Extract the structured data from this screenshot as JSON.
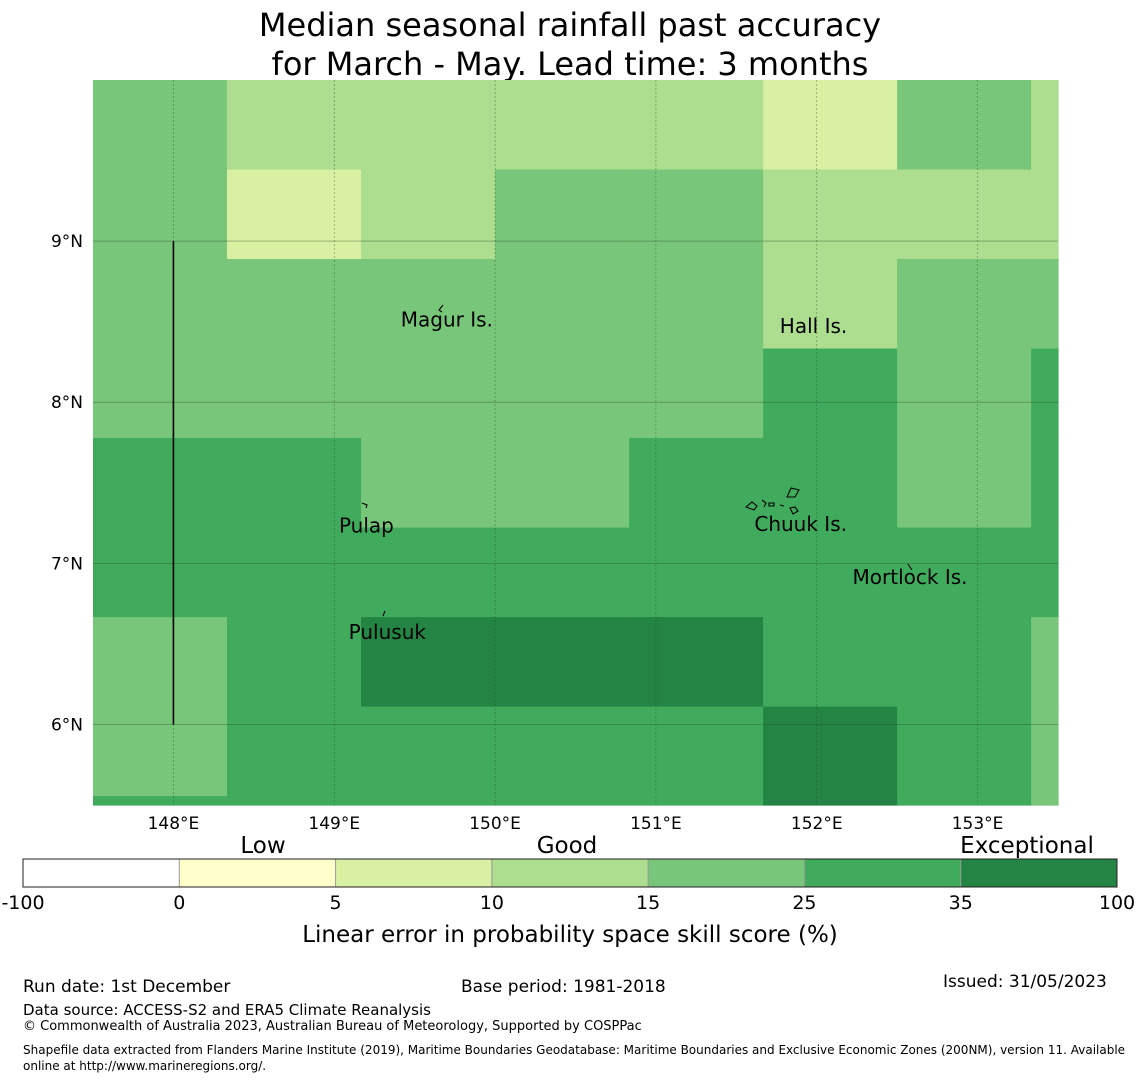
{
  "title_line1": "Median seasonal rainfall past accuracy",
  "title_line2": "for March - May. Lead time: 3 months",
  "map": {
    "lon_range": [
      147.5,
      153.5
    ],
    "lat_range": [
      5.5,
      10.0
    ],
    "cell_lon_start": 147.5,
    "cell_lon_size": 0.8333,
    "cell_lat_top": 10.0,
    "cell_lat_size": 0.5556,
    "grid_colors": [
      [
        "#78c679",
        "#addd8e",
        "#addd8e",
        "#addd8e",
        "#addd8e",
        "#d9f0a3",
        "#78c679",
        "#addd8e"
      ],
      [
        "#78c679",
        "#d9f0a3",
        "#addd8e",
        "#78c679",
        "#78c679",
        "#addd8e",
        "#addd8e",
        "#addd8e"
      ],
      [
        "#78c679",
        "#78c679",
        "#78c679",
        "#78c679",
        "#78c679",
        "#addd8e",
        "#78c679",
        "#78c679"
      ],
      [
        "#78c679",
        "#78c679",
        "#78c679",
        "#78c679",
        "#78c679",
        "#41ab5d",
        "#78c679",
        "#41ab5d"
      ],
      [
        "#41ab5d",
        "#41ab5d",
        "#78c679",
        "#78c679",
        "#41ab5d",
        "#41ab5d",
        "#78c679",
        "#41ab5d"
      ],
      [
        "#41ab5d",
        "#41ab5d",
        "#41ab5d",
        "#41ab5d",
        "#41ab5d",
        "#41ab5d",
        "#41ab5d",
        "#41ab5d"
      ],
      [
        "#78c679",
        "#41ab5d",
        "#238443",
        "#238443",
        "#238443",
        "#41ab5d",
        "#41ab5d",
        "#78c679"
      ],
      [
        "#78c679",
        "#41ab5d",
        "#41ab5d",
        "#41ab5d",
        "#41ab5d",
        "#238443",
        "#41ab5d",
        "#78c679"
      ],
      [
        "#41ab5d",
        "#41ab5d",
        "#41ab5d",
        "#41ab5d",
        "#41ab5d",
        "#238443",
        "#41ab5d",
        "#78c679"
      ]
    ],
    "lon_ticks": [
      {
        "value": 148,
        "label": "148°E"
      },
      {
        "value": 149,
        "label": "149°E"
      },
      {
        "value": 150,
        "label": "150°E"
      },
      {
        "value": 151,
        "label": "151°E"
      },
      {
        "value": 152,
        "label": "152°E"
      },
      {
        "value": 153,
        "label": "153°E"
      }
    ],
    "lat_ticks": [
      {
        "value": 9,
        "label": "9°N"
      },
      {
        "value": 8,
        "label": "8°N"
      },
      {
        "value": 7,
        "label": "7°N"
      },
      {
        "value": 6,
        "label": "6°N"
      }
    ],
    "boundary_line": {
      "lon": 148.0,
      "lat_from": 6.0,
      "lat_to": 9.0
    },
    "places": [
      {
        "name": "Magur Is.",
        "lon": 149.7,
        "lat": 8.52
      },
      {
        "name": "Hall Is.",
        "lon": 151.98,
        "lat": 8.48
      },
      {
        "name": "Pulap",
        "lon": 149.2,
        "lat": 7.24
      },
      {
        "name": "Chuuk Is.",
        "lon": 151.9,
        "lat": 7.25
      },
      {
        "name": "Mortlock Is.",
        "lon": 152.58,
        "lat": 6.92
      },
      {
        "name": "Pulusuk",
        "lon": 149.33,
        "lat": 6.58
      }
    ]
  },
  "legend": {
    "category_low": "Low",
    "category_good": "Good",
    "category_exceptional": "Exceptional",
    "bins": [
      {
        "from": "-100",
        "to": "0",
        "color": "#ffffff"
      },
      {
        "from": "0",
        "to": "5",
        "color": "#ffffcc"
      },
      {
        "from": "5",
        "to": "10",
        "color": "#d9f0a3"
      },
      {
        "from": "10",
        "to": "15",
        "color": "#addd8e"
      },
      {
        "from": "15",
        "to": "25",
        "color": "#78c679"
      },
      {
        "from": "25",
        "to": "35",
        "color": "#41ab5d"
      },
      {
        "from": "35",
        "to": "100",
        "color": "#238443"
      }
    ],
    "tick_labels": [
      "-100",
      "0",
      "5",
      "10",
      "15",
      "25",
      "35",
      "100"
    ],
    "axis_label": "Linear error in probability space skill score (%)"
  },
  "footer": {
    "run_date": "Run date: 1st December",
    "base_period": "Base period: 1981-2018",
    "issued": "Issued: 31/05/2023",
    "data_source": "Data source: ACCESS-S2 and ERA5 Climate Reanalysis",
    "copyright": "© Commonwealth of Australia 2023, Australian Bureau of Meteorology, Supported by COSPPac",
    "shapefile": "Shapefile data extracted from Flanders Marine Institute (2019), Maritime Boundaries Geodatabase: Maritime Boundaries and Exclusive Economic Zones (200NM), version 11. Available online at http://www.marineregions.org/."
  }
}
